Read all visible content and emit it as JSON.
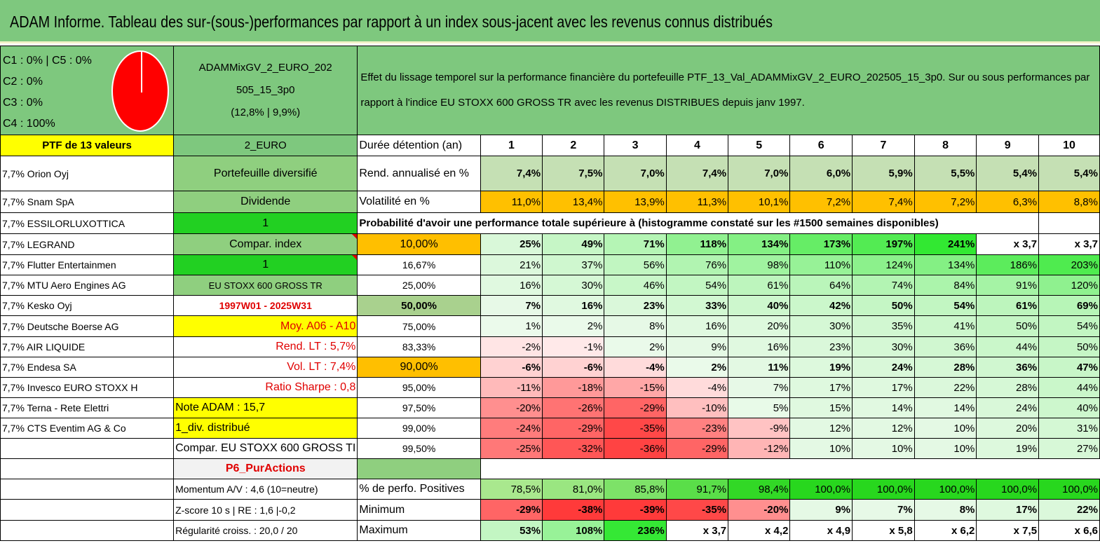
{
  "title": "ADAM Informe. Tableau des sur-(sous-)performances par rapport à un index sous-jacent avec les revenus connus distribués",
  "pie": {
    "legend": [
      "C1 : 0% | C5 : 0%",
      "C2 : 0%",
      "C3 : 0%",
      "C4 : 100%"
    ],
    "color": "#ff0000"
  },
  "portfolio": {
    "name_line1": "ADAMMixGV_2_EURO_202",
    "name_line2": "505_15_3p0",
    "name_line3": "(12,8% | 9,9%)"
  },
  "description": "Effet du lissage temporel sur la performance financière du portefeuille PTF_13_Val_ADAMMixGV_2_EURO_202505_15_3p0. Sur ou sous performances par rapport à l'indice EU STOXX 600 GROSS TR avec les revenus DISTRIBUES depuis janv 1997.",
  "col1_header": "PTF de 13 valeurs",
  "col2_header": "2_EURO",
  "duration_label": "Durée détention (an)",
  "years": [
    "1",
    "2",
    "3",
    "4",
    "5",
    "6",
    "7",
    "8",
    "9",
    "10"
  ],
  "holdings": [
    "7,7% Orion Oyj",
    "7,7% Snam SpA",
    "7,7% ESSILORLUXOTTICA",
    "7,7% LEGRAND",
    "7,7% Flutter Entertainmen",
    "7,7% MTU Aero Engines AG",
    "7,7% Kesko Oyj",
    "7,7% Deutsche Boerse AG",
    "7,7% AIR LIQUIDE",
    "7,7% Endesa SA",
    "7,7% Invesco EURO STOXX H",
    "7,7% Terna - Rete Elettri",
    "7,7% CTS Eventim AG & Co"
  ],
  "info": [
    "Portefeuille diversifié",
    "Dividende",
    "1",
    "Compar. index",
    "1",
    "EU STOXX 600 GROSS TR",
    "1997W01 - 2025W31",
    "Moy. A06 - A10",
    "Rend. LT : 5,7%",
    "Vol. LT : 7,4%",
    "Ratio Sharpe : 0,8",
    "Note ADAM : 15,7",
    "1_div. distribué",
    "Compar. EU STOXX 600 GROSS TI",
    "P6_PurActions"
  ],
  "return_row": {
    "label": "Rend. annualisé en %",
    "values": [
      "7,4%",
      "7,5%",
      "7,0%",
      "7,4%",
      "7,0%",
      "6,0%",
      "5,9%",
      "5,5%",
      "5,4%",
      "5,4%"
    ]
  },
  "vol_row": {
    "label": "Volatilité en %",
    "values": [
      "11,0%",
      "13,4%",
      "13,9%",
      "11,3%",
      "10,1%",
      "7,2%",
      "7,4%",
      "7,2%",
      "6,3%",
      "8,8%"
    ]
  },
  "prob_header": "Probabilité d'avoir une performance totale supérieure à (histogramme constaté sur les #1500 semaines disponibles)",
  "quantiles": [
    {
      "p": "10,00%",
      "values": [
        "25%",
        "49%",
        "71%",
        "118%",
        "134%",
        "173%",
        "197%",
        "241%",
        "x 3,7",
        "x 3,7"
      ]
    },
    {
      "p": "16,67%",
      "values": [
        "21%",
        "37%",
        "56%",
        "76%",
        "98%",
        "110%",
        "124%",
        "134%",
        "186%",
        "203%"
      ]
    },
    {
      "p": "25,00%",
      "values": [
        "16%",
        "30%",
        "46%",
        "54%",
        "61%",
        "64%",
        "74%",
        "84%",
        "91%",
        "120%"
      ]
    },
    {
      "p": "50,00%",
      "values": [
        "7%",
        "16%",
        "23%",
        "33%",
        "40%",
        "42%",
        "50%",
        "54%",
        "61%",
        "69%"
      ]
    },
    {
      "p": "75,00%",
      "values": [
        "1%",
        "2%",
        "8%",
        "16%",
        "20%",
        "30%",
        "35%",
        "41%",
        "50%",
        "54%"
      ]
    },
    {
      "p": "83,33%",
      "values": [
        "-2%",
        "-1%",
        "2%",
        "9%",
        "16%",
        "23%",
        "30%",
        "36%",
        "44%",
        "50%"
      ]
    },
    {
      "p": "90,00%",
      "values": [
        "-6%",
        "-6%",
        "-4%",
        "2%",
        "11%",
        "19%",
        "24%",
        "28%",
        "36%",
        "47%"
      ]
    },
    {
      "p": "95,00%",
      "values": [
        "-11%",
        "-18%",
        "-15%",
        "-4%",
        "7%",
        "17%",
        "17%",
        "22%",
        "28%",
        "44%"
      ]
    },
    {
      "p": "97,50%",
      "values": [
        "-20%",
        "-26%",
        "-29%",
        "-10%",
        "5%",
        "15%",
        "14%",
        "14%",
        "24%",
        "40%"
      ]
    },
    {
      "p": "99,00%",
      "values": [
        "-24%",
        "-29%",
        "-35%",
        "-23%",
        "-9%",
        "12%",
        "12%",
        "10%",
        "20%",
        "31%"
      ]
    },
    {
      "p": "99,50%",
      "values": [
        "-25%",
        "-32%",
        "-36%",
        "-29%",
        "-12%",
        "10%",
        "10%",
        "10%",
        "19%",
        "27%"
      ]
    }
  ],
  "bottom_info": [
    "Momentum A/V : 4,6 (10=neutre)",
    "Z-score 10 s | RE : 1,6 |-0,2",
    "Régularité croiss. : 20,0 / 20"
  ],
  "positive_row": {
    "label": "% de perfo. Positives",
    "values": [
      "78,5%",
      "81,0%",
      "85,8%",
      "91,7%",
      "98,4%",
      "100,0%",
      "100,0%",
      "100,0%",
      "100,0%",
      "100,0%"
    ]
  },
  "min_row": {
    "label": "Minimum",
    "values": [
      "-29%",
      "-38%",
      "-39%",
      "-35%",
      "-20%",
      "9%",
      "7%",
      "8%",
      "17%",
      "22%"
    ]
  },
  "max_row": {
    "label": "Maximum",
    "values": [
      "53%",
      "108%",
      "236%",
      "x 3,7",
      "x 4,2",
      "x 4,9",
      "x 5,8",
      "x 6,2",
      "x 7,5",
      "x 6,6"
    ]
  }
}
